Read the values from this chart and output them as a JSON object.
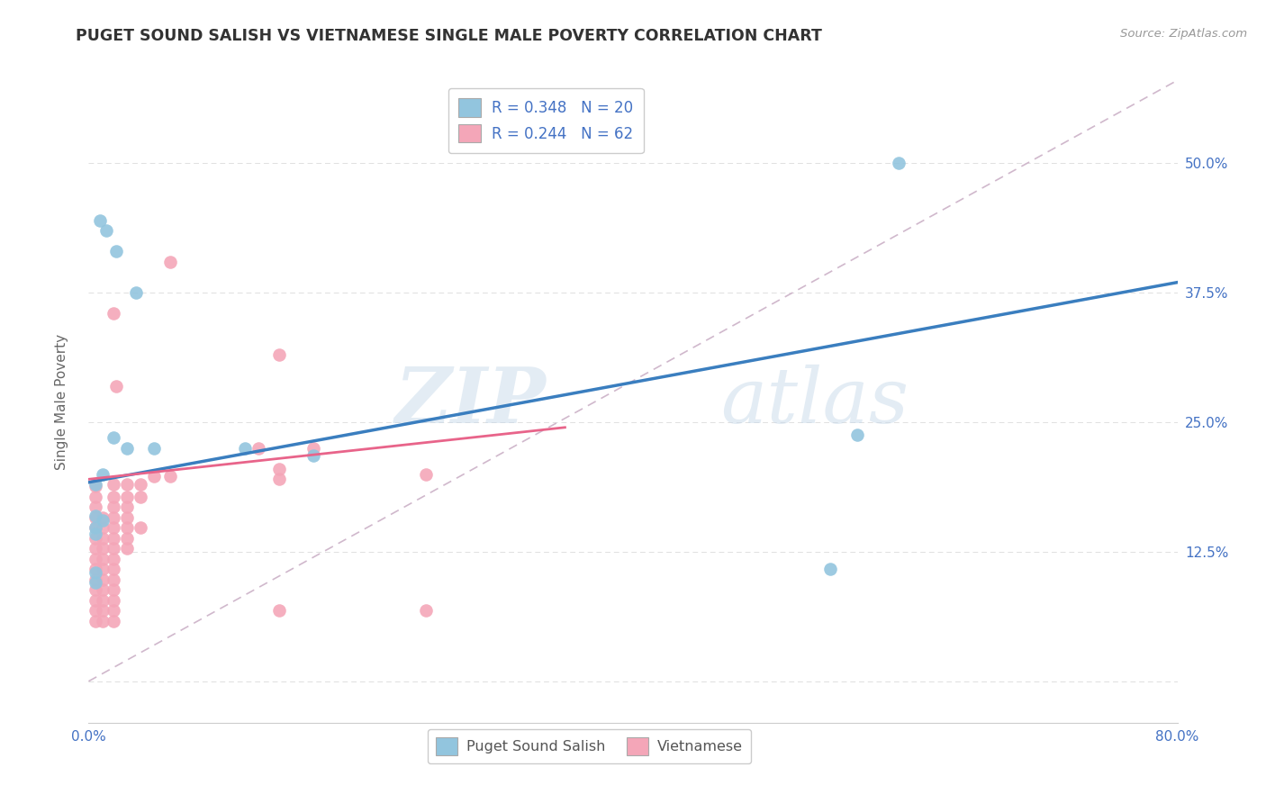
{
  "title": "PUGET SOUND SALISH VS VIETNAMESE SINGLE MALE POVERTY CORRELATION CHART",
  "source": "Source: ZipAtlas.com",
  "ylabel": "Single Male Poverty",
  "xlim": [
    0.0,
    0.8
  ],
  "ylim": [
    -0.04,
    0.58
  ],
  "yticks": [
    0.0,
    0.125,
    0.25,
    0.375,
    0.5
  ],
  "ytick_labels": [
    "",
    "12.5%",
    "25.0%",
    "37.5%",
    "50.0%"
  ],
  "xticks": [
    0.0,
    0.1,
    0.2,
    0.3,
    0.4,
    0.5,
    0.6,
    0.7,
    0.8
  ],
  "xtick_labels": [
    "0.0%",
    "",
    "",
    "",
    "",
    "",
    "",
    "",
    "80.0%"
  ],
  "blue_scatter": [
    [
      0.008,
      0.445
    ],
    [
      0.013,
      0.435
    ],
    [
      0.02,
      0.415
    ],
    [
      0.035,
      0.375
    ],
    [
      0.018,
      0.235
    ],
    [
      0.028,
      0.225
    ],
    [
      0.048,
      0.225
    ],
    [
      0.115,
      0.225
    ],
    [
      0.165,
      0.218
    ],
    [
      0.01,
      0.2
    ],
    [
      0.005,
      0.19
    ],
    [
      0.005,
      0.16
    ],
    [
      0.01,
      0.155
    ],
    [
      0.005,
      0.148
    ],
    [
      0.005,
      0.142
    ],
    [
      0.005,
      0.105
    ],
    [
      0.005,
      0.095
    ],
    [
      0.565,
      0.238
    ],
    [
      0.545,
      0.108
    ],
    [
      0.595,
      0.5
    ]
  ],
  "pink_scatter": [
    [
      0.06,
      0.405
    ],
    [
      0.018,
      0.355
    ],
    [
      0.14,
      0.315
    ],
    [
      0.02,
      0.285
    ],
    [
      0.125,
      0.225
    ],
    [
      0.165,
      0.225
    ],
    [
      0.14,
      0.205
    ],
    [
      0.14,
      0.195
    ],
    [
      0.248,
      0.2
    ],
    [
      0.048,
      0.198
    ],
    [
      0.06,
      0.198
    ],
    [
      0.018,
      0.19
    ],
    [
      0.028,
      0.19
    ],
    [
      0.038,
      0.19
    ],
    [
      0.005,
      0.188
    ],
    [
      0.018,
      0.178
    ],
    [
      0.028,
      0.178
    ],
    [
      0.038,
      0.178
    ],
    [
      0.005,
      0.178
    ],
    [
      0.018,
      0.168
    ],
    [
      0.028,
      0.168
    ],
    [
      0.005,
      0.168
    ],
    [
      0.018,
      0.158
    ],
    [
      0.028,
      0.158
    ],
    [
      0.005,
      0.158
    ],
    [
      0.01,
      0.158
    ],
    [
      0.018,
      0.148
    ],
    [
      0.028,
      0.148
    ],
    [
      0.038,
      0.148
    ],
    [
      0.005,
      0.148
    ],
    [
      0.01,
      0.148
    ],
    [
      0.018,
      0.138
    ],
    [
      0.028,
      0.138
    ],
    [
      0.01,
      0.138
    ],
    [
      0.005,
      0.138
    ],
    [
      0.018,
      0.128
    ],
    [
      0.028,
      0.128
    ],
    [
      0.01,
      0.128
    ],
    [
      0.005,
      0.128
    ],
    [
      0.018,
      0.118
    ],
    [
      0.01,
      0.118
    ],
    [
      0.005,
      0.118
    ],
    [
      0.018,
      0.108
    ],
    [
      0.01,
      0.108
    ],
    [
      0.005,
      0.108
    ],
    [
      0.018,
      0.098
    ],
    [
      0.01,
      0.098
    ],
    [
      0.005,
      0.098
    ],
    [
      0.018,
      0.088
    ],
    [
      0.01,
      0.088
    ],
    [
      0.005,
      0.088
    ],
    [
      0.018,
      0.078
    ],
    [
      0.01,
      0.078
    ],
    [
      0.005,
      0.078
    ],
    [
      0.018,
      0.068
    ],
    [
      0.01,
      0.068
    ],
    [
      0.005,
      0.068
    ],
    [
      0.248,
      0.068
    ],
    [
      0.14,
      0.068
    ],
    [
      0.005,
      0.058
    ],
    [
      0.01,
      0.058
    ],
    [
      0.018,
      0.058
    ]
  ],
  "blue_line": [
    [
      0.0,
      0.192
    ],
    [
      0.8,
      0.385
    ]
  ],
  "pink_line": [
    [
      0.0,
      0.195
    ],
    [
      0.35,
      0.245
    ]
  ],
  "dashed_line": [
    [
      0.0,
      0.0
    ],
    [
      0.8,
      0.58
    ]
  ],
  "blue_color": "#92c5de",
  "pink_color": "#f4a6b8",
  "blue_line_color": "#3a7ebf",
  "pink_line_color": "#e8648a",
  "dashed_line_color": "#d0b8cc",
  "R_blue": 0.348,
  "N_blue": 20,
  "R_pink": 0.244,
  "N_pink": 62,
  "watermark_zip": "ZIP",
  "watermark_atlas": "atlas",
  "background_color": "#ffffff",
  "grid_color": "#e0e0e0",
  "title_color": "#333333",
  "axis_label_color": "#666666",
  "tick_label_color": "#4472c4",
  "legend_text_color": "#4472c4",
  "legend_label_color": "#555555"
}
